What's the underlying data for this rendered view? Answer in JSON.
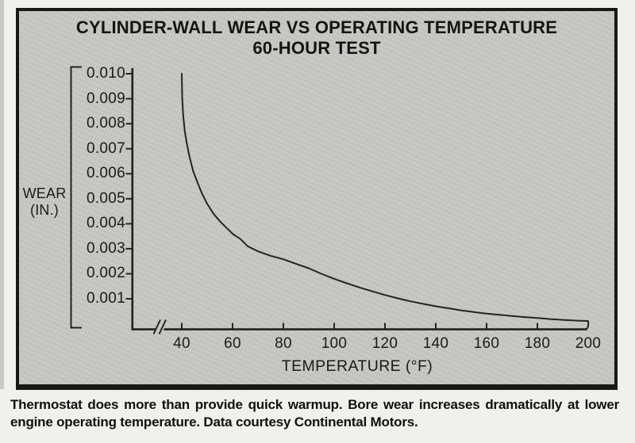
{
  "title": {
    "line1": "CYLINDER-WALL WEAR VS OPERATING TEMPERATURE",
    "line2": "60-HOUR TEST"
  },
  "y_axis": {
    "label_line1": "WEAR",
    "label_line2": "(IN.)"
  },
  "x_axis": {
    "label": "TEMPERATURE (°F)"
  },
  "caption": {
    "text": "Thermostat does more than provide quick warmup. Bore wear increases dramatically at lower engine operating temperature. Data courtesy Continental Motors."
  },
  "colors": {
    "ink": "#1f1f1f",
    "chart_background": "#c8c7c3",
    "page_background": "#f1f0ec"
  },
  "chart_data": {
    "type": "line",
    "title": "CYLINDER-WALL WEAR VS OPERATING TEMPERATURE — 60-HOUR TEST",
    "xlabel": "TEMPERATURE (°F)",
    "ylabel": "WEAR (IN.)",
    "xlim": [
      40,
      200
    ],
    "ylim": [
      0,
      0.01
    ],
    "grid": false,
    "legend": false,
    "x_axis_break_before_first_tick": true,
    "x_ticks": [
      {
        "v": 40,
        "label": "40",
        "mark": true
      },
      {
        "v": 60,
        "label": "60",
        "mark": true
      },
      {
        "v": 80,
        "label": "80",
        "mark": true
      },
      {
        "v": 100,
        "label": "100",
        "mark": true
      },
      {
        "v": 120,
        "label": "120",
        "mark": true
      },
      {
        "v": 140,
        "label": "140",
        "mark": true
      },
      {
        "v": 160,
        "label": "160",
        "mark": true
      },
      {
        "v": 180,
        "label": "180",
        "mark": true
      },
      {
        "v": 200,
        "label": "200",
        "mark": false
      }
    ],
    "y_ticks": [
      {
        "v": 0.01,
        "label": "0.010"
      },
      {
        "v": 0.009,
        "label": "0.009"
      },
      {
        "v": 0.008,
        "label": "0.008"
      },
      {
        "v": 0.007,
        "label": "0.007"
      },
      {
        "v": 0.006,
        "label": "0.006"
      },
      {
        "v": 0.005,
        "label": "0.005"
      },
      {
        "v": 0.004,
        "label": "0.004"
      },
      {
        "v": 0.003,
        "label": "0.003"
      },
      {
        "v": 0.002,
        "label": "0.002"
      },
      {
        "v": 0.001,
        "label": "0.001"
      }
    ],
    "points": [
      [
        40,
        0.01
      ],
      [
        40.2,
        0.009
      ],
      [
        40.6,
        0.0083
      ],
      [
        41.2,
        0.0077
      ],
      [
        42,
        0.0072
      ],
      [
        43,
        0.0067
      ],
      [
        44.5,
        0.0061
      ],
      [
        46,
        0.0057
      ],
      [
        48,
        0.0052
      ],
      [
        50,
        0.0048
      ],
      [
        52.5,
        0.0044
      ],
      [
        55,
        0.0041
      ],
      [
        58,
        0.0038
      ],
      [
        60,
        0.0036
      ],
      [
        63,
        0.0034
      ],
      [
        66,
        0.0031
      ],
      [
        70,
        0.0029
      ],
      [
        75,
        0.00272
      ],
      [
        80,
        0.00258
      ],
      [
        85,
        0.0024
      ],
      [
        90,
        0.00222
      ],
      [
        95,
        0.002
      ],
      [
        100,
        0.0018
      ],
      [
        105,
        0.00162
      ],
      [
        110,
        0.00145
      ],
      [
        115,
        0.0013
      ],
      [
        120,
        0.00115
      ],
      [
        125,
        0.00102
      ],
      [
        130,
        0.0009
      ],
      [
        135,
        0.0008
      ],
      [
        140,
        0.0007
      ],
      [
        145,
        0.00062
      ],
      [
        150,
        0.00054
      ],
      [
        155,
        0.00047
      ],
      [
        160,
        0.00041
      ],
      [
        165,
        0.00036
      ],
      [
        170,
        0.00031
      ],
      [
        175,
        0.00027
      ],
      [
        180,
        0.00023
      ],
      [
        185,
        0.00019
      ],
      [
        190,
        0.00016
      ],
      [
        195,
        0.00013
      ],
      [
        200,
        0.00011
      ]
    ]
  }
}
